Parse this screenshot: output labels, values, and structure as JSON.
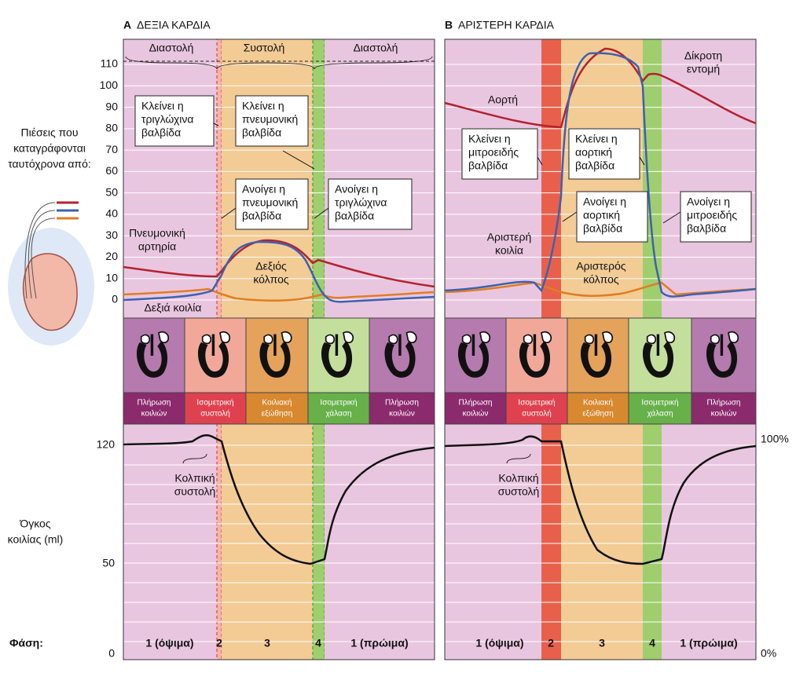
{
  "side": {
    "pressure_label": [
      "Πιέσεις που",
      "καταγράφονται",
      "ταυτόχρονα από:"
    ],
    "volume_label": [
      "Όγκος",
      "κοιλίας (ml)"
    ],
    "phase_label": "Φάση:"
  },
  "pressure_ticks": [
    110,
    100,
    90,
    80,
    70,
    60,
    50,
    40,
    30,
    20,
    10,
    0
  ],
  "volume_ticks": [
    120,
    50,
    0
  ],
  "percent_ticks": [
    "100%",
    "0%"
  ],
  "panels": [
    {
      "letter": "A",
      "title": "ΔΕΞΙΑ ΚΑΡΔΙΑ",
      "cycle": [
        "Διαστολή",
        "Συστολή",
        "Διαστολή"
      ],
      "boxes": [
        {
          "lines": [
            "Κλείνει η",
            "τριγλώχινα",
            "βαλβίδα"
          ]
        },
        {
          "lines": [
            "Κλείνει η",
            "πνευμονική",
            "βαλβίδα"
          ]
        },
        {
          "lines": [
            "Ανοίγει η",
            "πνευμονική",
            "βαλβίδα"
          ]
        },
        {
          "lines": [
            "Ανοίγει η",
            "τριγλώχινα",
            "βαλβίδα"
          ]
        }
      ],
      "labels": [
        {
          "lines": [
            "Πνευμονική",
            "αρτηρία"
          ]
        },
        {
          "lines": [
            "Δεξιός",
            "κόλπος"
          ]
        },
        {
          "lines": [
            "Δεξιά κοιλία"
          ]
        }
      ],
      "phases": [
        {
          "lines": [
            "Πλήρωση",
            "κοιλιών"
          ]
        },
        {
          "lines": [
            "Ισομετρική",
            "συστολή"
          ]
        },
        {
          "lines": [
            "Κοιλιακή",
            "εξώθηση"
          ]
        },
        {
          "lines": [
            "Ισομετρική",
            "χάλαση"
          ]
        },
        {
          "lines": [
            "Πλήρωση",
            "κοιλιών"
          ]
        }
      ],
      "volume_note": [
        "Κολπική",
        "συστολή"
      ],
      "phase_numbers": [
        "1 (όψιμα)",
        "2",
        "3",
        "4",
        "1 (πρώιμα)"
      ]
    },
    {
      "letter": "B",
      "title": "ΑΡΙΣΤΕΡΗ ΚΑΡΔΙΑ",
      "boxes": [
        {
          "lines": [
            "Κλείνει η",
            "μιτροειδής",
            "βαλβίδα"
          ]
        },
        {
          "lines": [
            "Κλείνει η",
            "αορτική",
            "βαλβίδα"
          ]
        },
        {
          "lines": [
            "Ανοίγει η",
            "αορτική",
            "βαλβίδα"
          ]
        },
        {
          "lines": [
            "Ανοίγει η",
            "μιτροειδής",
            "βαλβίδα"
          ]
        }
      ],
      "labels": [
        {
          "lines": [
            "Αορτή"
          ]
        },
        {
          "lines": [
            "Δίκροτη",
            "εντομή"
          ]
        },
        {
          "lines": [
            "Αριστερή",
            "κοιλία"
          ]
        },
        {
          "lines": [
            "Αριστερός",
            "κόλπος"
          ]
        }
      ],
      "phases": [
        {
          "lines": [
            "Πλήρωση",
            "κοιλιών"
          ]
        },
        {
          "lines": [
            "Ισομετρική",
            "συστολή"
          ]
        },
        {
          "lines": [
            "Κοιλιακή",
            "εξώθηση"
          ]
        },
        {
          "lines": [
            "Ισομετρική",
            "χάλαση"
          ]
        },
        {
          "lines": [
            "Πλήρωση",
            "κοιλιών"
          ]
        }
      ],
      "volume_note": [
        "Κολπική",
        "συστολή"
      ],
      "phase_numbers": [
        "1 (όψιμα)",
        "2",
        "3",
        "4",
        "1 (πρώιμα)"
      ]
    }
  ]
}
